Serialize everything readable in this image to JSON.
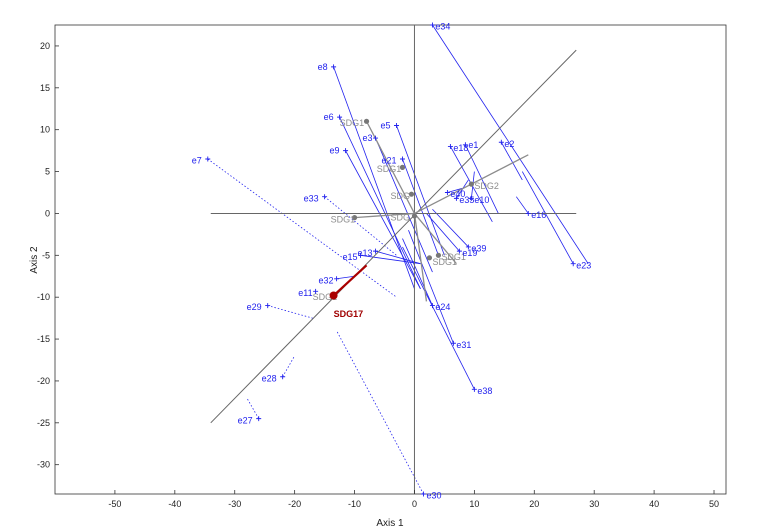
{
  "chart_data": {
    "type": "scatter",
    "title": "",
    "xlabel": "Axis 1",
    "ylabel": "Axis 2",
    "xlim": [
      -60,
      52
    ],
    "ylim": [
      -33.5,
      22.5
    ],
    "xticks": [
      -50,
      -40,
      -30,
      -20,
      -10,
      0,
      10,
      20,
      30,
      40,
      50
    ],
    "yticks": [
      20,
      15,
      10,
      5,
      0,
      -5,
      -10,
      -15,
      -20,
      -25,
      -30
    ],
    "grid": false,
    "colors": {
      "env": "#2222ee",
      "sample": "#8c8c8c",
      "highlight": "#aa0000",
      "axis": "#555555"
    },
    "reference_lines": [
      {
        "name": "x-axis-line",
        "x": [
          -34,
          27
        ],
        "y": [
          0,
          0
        ]
      },
      {
        "name": "y-axis-line",
        "x": [
          0,
          0
        ],
        "y": [
          22.5,
          -33.5
        ]
      },
      {
        "name": "projection-axis",
        "x": [
          -34,
          27
        ],
        "y": [
          -25,
          19.5
        ]
      }
    ],
    "env_points": [
      {
        "label": "e34",
        "x": 3,
        "y": 22.5,
        "lx": 3.5,
        "ly": 22.3,
        "style": "solid",
        "p": [
          29,
          -6
        ]
      },
      {
        "label": "e8",
        "x": -13.5,
        "y": 17.5,
        "lx": -14.5,
        "ly": 17.5,
        "style": "solid",
        "p": [
          0,
          -9
        ]
      },
      {
        "label": "e6",
        "x": -12.5,
        "y": 11.5,
        "lx": -13.5,
        "ly": 11.5,
        "style": "solid",
        "p": [
          1,
          -9
        ]
      },
      {
        "label": "SDG1",
        "x": -8,
        "y": 11,
        "lx": -12.5,
        "ly": 10.8,
        "style": "none",
        "p": null,
        "group": "sample"
      },
      {
        "label": "e5",
        "x": -3,
        "y": 10.5,
        "lx": -4,
        "ly": 10.5,
        "style": "solid",
        "p": [
          5,
          -5
        ]
      },
      {
        "label": "e3",
        "x": -6.5,
        "y": 9,
        "lx": -7,
        "ly": 9,
        "style": "solid",
        "p": [
          3,
          -7
        ]
      },
      {
        "label": "e18",
        "x": 6,
        "y": 8,
        "lx": 6.5,
        "ly": 7.8,
        "style": "solid",
        "p": [
          13,
          -1
        ]
      },
      {
        "label": "e1",
        "x": 8.5,
        "y": 8.2,
        "lx": 9,
        "ly": 8.2,
        "style": "solid",
        "p": [
          14,
          0
        ]
      },
      {
        "label": "e2",
        "x": 14.5,
        "y": 8.5,
        "lx": 15,
        "ly": 8.3,
        "style": "solid",
        "p": [
          18,
          4
        ]
      },
      {
        "label": "e9",
        "x": -11.5,
        "y": 7.5,
        "lx": -12.5,
        "ly": 7.5,
        "style": "solid",
        "p": [
          1,
          -9
        ]
      },
      {
        "label": "e7",
        "x": -34.5,
        "y": 6.5,
        "lx": -35.5,
        "ly": 6.3,
        "style": "dotted",
        "p": [
          -3,
          -10
        ]
      },
      {
        "label": "e21",
        "x": -2,
        "y": 6.5,
        "lx": -3,
        "ly": 6.3,
        "style": "solid",
        "p": [
          4,
          -5
        ]
      },
      {
        "label": "e40",
        "x": 5.5,
        "y": 2.5,
        "lx": 6,
        "ly": 2.3,
        "style": "solid",
        "p": [
          8,
          3
        ]
      },
      {
        "label": "e35",
        "x": 7,
        "y": 1.8,
        "lx": 7.5,
        "ly": 1.6,
        "style": "solid",
        "p": [
          9,
          4
        ]
      },
      {
        "label": "e10",
        "x": 9.5,
        "y": 1.8,
        "lx": 10,
        "ly": 1.6,
        "style": "solid",
        "p": [
          10,
          5
        ]
      },
      {
        "label": "e33",
        "x": -15,
        "y": 2,
        "lx": -16,
        "ly": 1.8,
        "style": "dotted",
        "p": [
          -3,
          -5
        ]
      },
      {
        "label": "e16",
        "x": 19,
        "y": 0,
        "lx": 19.5,
        "ly": -0.2,
        "style": "solid",
        "p": [
          17,
          2
        ]
      },
      {
        "label": "e39",
        "x": 9,
        "y": -4,
        "lx": 9.5,
        "ly": -4.2,
        "style": "solid",
        "p": [
          3,
          0.5
        ]
      },
      {
        "label": "e19",
        "x": 7.5,
        "y": -4.5,
        "lx": 8,
        "ly": -4.7,
        "style": "solid",
        "p": [
          2,
          0
        ]
      },
      {
        "label": "e13",
        "x": -6.5,
        "y": -4.5,
        "lx": -7,
        "ly": -4.7,
        "style": "solid",
        "p": [
          1,
          -6
        ]
      },
      {
        "label": "e15",
        "x": -9,
        "y": -5,
        "lx": -9.5,
        "ly": -5.2,
        "style": "solid",
        "p": [
          1,
          -6
        ]
      },
      {
        "label": "e23",
        "x": 26.5,
        "y": -6,
        "lx": 27,
        "ly": -6.2,
        "style": "solid",
        "p": [
          18,
          5
        ]
      },
      {
        "label": "e32",
        "x": -13,
        "y": -7.8,
        "lx": -13.5,
        "ly": -8,
        "style": "solid",
        "p": [
          -10,
          -7.5
        ]
      },
      {
        "label": "e11",
        "x": -16.5,
        "y": -9.3,
        "lx": -17,
        "ly": -9.5,
        "style": "none",
        "p": null
      },
      {
        "label": "e29",
        "x": -24.5,
        "y": -11,
        "lx": -25.5,
        "ly": -11.2,
        "style": "dotted",
        "p": [
          -17,
          -12.5
        ]
      },
      {
        "label": "e24",
        "x": 3,
        "y": -11,
        "lx": 3.5,
        "ly": -11.2,
        "style": "solid",
        "p": [
          -2,
          -3
        ]
      },
      {
        "label": "e31",
        "x": 6.5,
        "y": -15.5,
        "lx": 7,
        "ly": -15.7,
        "style": "solid",
        "p": [
          -1,
          -2
        ]
      },
      {
        "label": "e28",
        "x": -22,
        "y": -19.5,
        "lx": -23,
        "ly": -19.7,
        "style": "dotted",
        "p": [
          -20,
          -17
        ]
      },
      {
        "label": "e38",
        "x": 10,
        "y": -21,
        "lx": 10.5,
        "ly": -21.2,
        "style": "solid",
        "p": [
          -2,
          -4
        ]
      },
      {
        "label": "e27",
        "x": -26,
        "y": -24.5,
        "lx": -27,
        "ly": -24.7,
        "style": "dotted",
        "p": [
          -28,
          -22
        ]
      },
      {
        "label": "e30",
        "x": 1.5,
        "y": -33.5,
        "lx": 2,
        "ly": -33.7,
        "style": "dotted",
        "p": [
          -13,
          -14
        ]
      }
    ],
    "sample_points": [
      {
        "label": "SDG1",
        "x": -8,
        "y": 11,
        "lx": -12.5,
        "ly": 10.8
      },
      {
        "label": "SDG1",
        "x": -2,
        "y": 5.5,
        "lx": -6.3,
        "ly": 5.3
      },
      {
        "label": "SDG2",
        "x": 9.5,
        "y": 3.5,
        "lx": 10,
        "ly": 3.3
      },
      {
        "label": "SDG",
        "x": -0.5,
        "y": 2.3,
        "lx": -4,
        "ly": 2.1
      },
      {
        "label": "SDG1",
        "x": -10,
        "y": -0.5,
        "lx": -14,
        "ly": -0.7
      },
      {
        "label": "SDG",
        "x": 0,
        "y": -0.3,
        "lx": -4,
        "ly": -0.5
      },
      {
        "label": "SDG1",
        "x": 4,
        "y": -5,
        "lx": 4.5,
        "ly": -5.2
      },
      {
        "label": "SDG1",
        "x": 2.5,
        "y": -5.3,
        "lx": 3,
        "ly": -5.8
      },
      {
        "label": "SDG1",
        "x": -13.5,
        "y": -9.8,
        "lx": -17,
        "ly": -10
      }
    ],
    "sample_arrows": [
      {
        "x": [
          0,
          19
        ],
        "y": [
          0,
          7
        ]
      },
      {
        "x": [
          0,
          7
        ],
        "y": [
          0,
          -6
        ]
      },
      {
        "x": [
          0,
          2
        ],
        "y": [
          0,
          -10.5
        ]
      },
      {
        "x": [
          0,
          -8
        ],
        "y": [
          0,
          11
        ]
      },
      {
        "x": [
          0,
          -10
        ],
        "y": [
          0,
          -0.5
        ]
      }
    ],
    "highlight": {
      "label": "SDG17",
      "x": -13.5,
      "y": -9.8,
      "lx": -13.5,
      "ly": -12,
      "arrow_to": [
        -8,
        -6.2
      ]
    }
  }
}
